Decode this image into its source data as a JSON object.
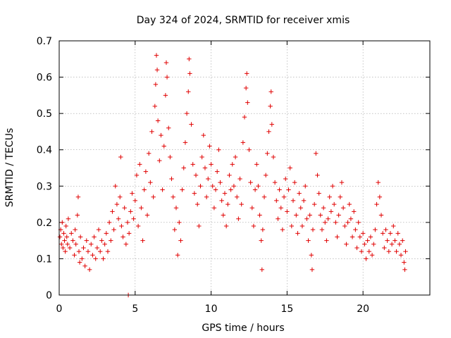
{
  "chart_data": {
    "type": "scatter",
    "title": "Day 324 of 2024, SRMTID for receiver xmis",
    "xlabel": "GPS time / hours",
    "ylabel": "SRMTID / TECUs",
    "xlim": [
      0,
      24.4
    ],
    "ylim": [
      0,
      0.7
    ],
    "xticks": [
      0,
      5,
      10,
      15,
      20
    ],
    "yticks": [
      0,
      0.1,
      0.2,
      0.3,
      0.4,
      0.5,
      0.6,
      0.7
    ],
    "xtick_labels": [
      "0",
      "5",
      "10",
      "15",
      "20"
    ],
    "ytick_labels": [
      "0",
      "0.1",
      "0.2",
      "0.3",
      "0.4",
      "0.5",
      "0.6",
      "0.7"
    ],
    "grid": true,
    "marker": "plus",
    "color": "#e00000",
    "series": [
      {
        "name": "SRMTID",
        "points": [
          [
            0.05,
            0.16
          ],
          [
            0.1,
            0.18
          ],
          [
            0.15,
            0.14
          ],
          [
            0.2,
            0.2
          ],
          [
            0.25,
            0.13
          ],
          [
            0.3,
            0.17
          ],
          [
            0.35,
            0.15
          ],
          [
            0.4,
            0.12
          ],
          [
            0.45,
            0.19
          ],
          [
            0.5,
            0.16
          ],
          [
            0.55,
            0.14
          ],
          [
            0.6,
            0.21
          ],
          [
            0.7,
            0.13
          ],
          [
            0.8,
            0.17
          ],
          [
            0.9,
            0.15
          ],
          [
            1.0,
            0.11
          ],
          [
            1.05,
            0.18
          ],
          [
            1.1,
            0.14
          ],
          [
            1.2,
            0.22
          ],
          [
            1.25,
            0.27
          ],
          [
            1.3,
            0.12
          ],
          [
            1.35,
            0.09
          ],
          [
            1.4,
            0.16
          ],
          [
            1.5,
            0.1
          ],
          [
            1.6,
            0.13
          ],
          [
            1.7,
            0.08
          ],
          [
            1.8,
            0.15
          ],
          [
            1.9,
            0.12
          ],
          [
            2.0,
            0.07
          ],
          [
            2.1,
            0.14
          ],
          [
            2.2,
            0.11
          ],
          [
            2.3,
            0.16
          ],
          [
            2.4,
            0.1
          ],
          [
            2.5,
            0.13
          ],
          [
            2.6,
            0.18
          ],
          [
            2.7,
            0.12
          ],
          [
            2.8,
            0.15
          ],
          [
            2.9,
            0.1
          ],
          [
            3.0,
            0.14
          ],
          [
            3.1,
            0.17
          ],
          [
            3.2,
            0.12
          ],
          [
            3.3,
            0.2
          ],
          [
            3.4,
            0.15
          ],
          [
            3.5,
            0.23
          ],
          [
            3.6,
            0.18
          ],
          [
            3.7,
            0.3
          ],
          [
            3.8,
            0.25
          ],
          [
            3.9,
            0.21
          ],
          [
            4.0,
            0.27
          ],
          [
            4.05,
            0.38
          ],
          [
            4.1,
            0.19
          ],
          [
            4.2,
            0.16
          ],
          [
            4.3,
            0.24
          ],
          [
            4.4,
            0.14
          ],
          [
            4.5,
            0.2
          ],
          [
            4.55,
            0.0
          ],
          [
            4.6,
            0.17
          ],
          [
            4.7,
            0.23
          ],
          [
            4.8,
            0.28
          ],
          [
            4.9,
            0.21
          ],
          [
            5.0,
            0.26
          ],
          [
            5.1,
            0.33
          ],
          [
            5.2,
            0.19
          ],
          [
            5.3,
            0.36
          ],
          [
            5.4,
            0.24
          ],
          [
            5.5,
            0.15
          ],
          [
            5.6,
            0.29
          ],
          [
            5.7,
            0.34
          ],
          [
            5.8,
            0.22
          ],
          [
            5.9,
            0.39
          ],
          [
            6.0,
            0.31
          ],
          [
            6.1,
            0.45
          ],
          [
            6.2,
            0.27
          ],
          [
            6.3,
            0.52
          ],
          [
            6.35,
            0.58
          ],
          [
            6.4,
            0.66
          ],
          [
            6.45,
            0.62
          ],
          [
            6.5,
            0.48
          ],
          [
            6.6,
            0.37
          ],
          [
            6.7,
            0.44
          ],
          [
            6.8,
            0.29
          ],
          [
            6.9,
            0.41
          ],
          [
            7.0,
            0.55
          ],
          [
            7.05,
            0.64
          ],
          [
            7.1,
            0.6
          ],
          [
            7.2,
            0.46
          ],
          [
            7.3,
            0.38
          ],
          [
            7.4,
            0.32
          ],
          [
            7.5,
            0.27
          ],
          [
            7.6,
            0.18
          ],
          [
            7.7,
            0.24
          ],
          [
            7.8,
            0.11
          ],
          [
            7.9,
            0.2
          ],
          [
            8.0,
            0.15
          ],
          [
            8.1,
            0.29
          ],
          [
            8.2,
            0.35
          ],
          [
            8.3,
            0.42
          ],
          [
            8.4,
            0.5
          ],
          [
            8.5,
            0.56
          ],
          [
            8.55,
            0.65
          ],
          [
            8.6,
            0.61
          ],
          [
            8.7,
            0.47
          ],
          [
            8.8,
            0.36
          ],
          [
            8.9,
            0.28
          ],
          [
            9.0,
            0.33
          ],
          [
            9.1,
            0.25
          ],
          [
            9.2,
            0.19
          ],
          [
            9.3,
            0.3
          ],
          [
            9.4,
            0.38
          ],
          [
            9.5,
            0.44
          ],
          [
            9.6,
            0.35
          ],
          [
            9.7,
            0.27
          ],
          [
            9.8,
            0.32
          ],
          [
            9.9,
            0.41
          ],
          [
            10.0,
            0.36
          ],
          [
            10.1,
            0.3
          ],
          [
            10.2,
            0.24
          ],
          [
            10.3,
            0.29
          ],
          [
            10.4,
            0.34
          ],
          [
            10.5,
            0.4
          ],
          [
            10.6,
            0.31
          ],
          [
            10.7,
            0.26
          ],
          [
            10.8,
            0.22
          ],
          [
            10.9,
            0.28
          ],
          [
            11.0,
            0.19
          ],
          [
            11.1,
            0.25
          ],
          [
            11.2,
            0.33
          ],
          [
            11.3,
            0.29
          ],
          [
            11.4,
            0.36
          ],
          [
            11.5,
            0.3
          ],
          [
            11.6,
            0.38
          ],
          [
            11.7,
            0.27
          ],
          [
            11.8,
            0.21
          ],
          [
            11.9,
            0.32
          ],
          [
            12.0,
            0.25
          ],
          [
            12.1,
            0.42
          ],
          [
            12.2,
            0.49
          ],
          [
            12.3,
            0.57
          ],
          [
            12.35,
            0.61
          ],
          [
            12.4,
            0.53
          ],
          [
            12.5,
            0.4
          ],
          [
            12.6,
            0.31
          ],
          [
            12.7,
            0.24
          ],
          [
            12.8,
            0.19
          ],
          [
            12.9,
            0.29
          ],
          [
            13.0,
            0.36
          ],
          [
            13.1,
            0.3
          ],
          [
            13.2,
            0.22
          ],
          [
            13.3,
            0.15
          ],
          [
            13.35,
            0.07
          ],
          [
            13.4,
            0.18
          ],
          [
            13.5,
            0.27
          ],
          [
            13.6,
            0.33
          ],
          [
            13.7,
            0.39
          ],
          [
            13.8,
            0.45
          ],
          [
            13.9,
            0.52
          ],
          [
            13.95,
            0.56
          ],
          [
            14.0,
            0.47
          ],
          [
            14.1,
            0.38
          ],
          [
            14.2,
            0.31
          ],
          [
            14.3,
            0.26
          ],
          [
            14.4,
            0.21
          ],
          [
            14.5,
            0.29
          ],
          [
            14.6,
            0.24
          ],
          [
            14.7,
            0.18
          ],
          [
            14.8,
            0.27
          ],
          [
            14.9,
            0.32
          ],
          [
            15.0,
            0.23
          ],
          [
            15.1,
            0.29
          ],
          [
            15.2,
            0.35
          ],
          [
            15.3,
            0.19
          ],
          [
            15.4,
            0.26
          ],
          [
            15.5,
            0.31
          ],
          [
            15.6,
            0.22
          ],
          [
            15.7,
            0.17
          ],
          [
            15.8,
            0.28
          ],
          [
            15.9,
            0.24
          ],
          [
            16.0,
            0.19
          ],
          [
            16.1,
            0.26
          ],
          [
            16.2,
            0.3
          ],
          [
            16.3,
            0.21
          ],
          [
            16.4,
            0.15
          ],
          [
            16.5,
            0.22
          ],
          [
            16.6,
            0.11
          ],
          [
            16.65,
            0.07
          ],
          [
            16.7,
            0.18
          ],
          [
            16.8,
            0.25
          ],
          [
            16.9,
            0.39
          ],
          [
            17.0,
            0.33
          ],
          [
            17.1,
            0.28
          ],
          [
            17.2,
            0.22
          ],
          [
            17.3,
            0.18
          ],
          [
            17.4,
            0.24
          ],
          [
            17.5,
            0.2
          ],
          [
            17.6,
            0.15
          ],
          [
            17.7,
            0.21
          ],
          [
            17.8,
            0.27
          ],
          [
            17.9,
            0.23
          ],
          [
            18.0,
            0.3
          ],
          [
            18.1,
            0.25
          ],
          [
            18.2,
            0.2
          ],
          [
            18.3,
            0.16
          ],
          [
            18.4,
            0.22
          ],
          [
            18.5,
            0.27
          ],
          [
            18.6,
            0.31
          ],
          [
            18.7,
            0.24
          ],
          [
            18.8,
            0.19
          ],
          [
            18.9,
            0.14
          ],
          [
            19.0,
            0.2
          ],
          [
            19.1,
            0.25
          ],
          [
            19.2,
            0.21
          ],
          [
            19.3,
            0.16
          ],
          [
            19.4,
            0.23
          ],
          [
            19.5,
            0.18
          ],
          [
            19.6,
            0.13
          ],
          [
            19.7,
            0.2
          ],
          [
            19.8,
            0.16
          ],
          [
            19.9,
            0.12
          ],
          [
            20.0,
            0.17
          ],
          [
            20.1,
            0.14
          ],
          [
            20.2,
            0.1
          ],
          [
            20.3,
            0.15
          ],
          [
            20.4,
            0.12
          ],
          [
            20.5,
            0.16
          ],
          [
            20.6,
            0.11
          ],
          [
            20.7,
            0.14
          ],
          [
            20.8,
            0.18
          ],
          [
            20.9,
            0.25
          ],
          [
            21.0,
            0.31
          ],
          [
            21.1,
            0.27
          ],
          [
            21.2,
            0.22
          ],
          [
            21.3,
            0.17
          ],
          [
            21.4,
            0.13
          ],
          [
            21.5,
            0.18
          ],
          [
            21.6,
            0.15
          ],
          [
            21.7,
            0.12
          ],
          [
            21.8,
            0.17
          ],
          [
            21.9,
            0.14
          ],
          [
            22.0,
            0.19
          ],
          [
            22.1,
            0.15
          ],
          [
            22.2,
            0.12
          ],
          [
            22.3,
            0.17
          ],
          [
            22.4,
            0.14
          ],
          [
            22.5,
            0.11
          ],
          [
            22.6,
            0.15
          ],
          [
            22.7,
            0.09
          ],
          [
            22.75,
            0.07
          ],
          [
            22.8,
            0.12
          ]
        ]
      }
    ]
  }
}
